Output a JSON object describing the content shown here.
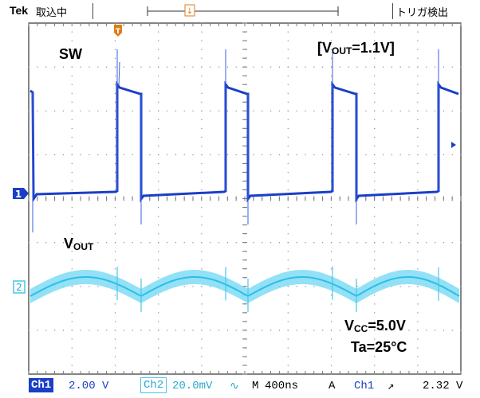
{
  "header": {
    "brand": "Tek",
    "acquisition_status": "取込中",
    "trigger_status": "トリガ検出"
  },
  "annotations": {
    "sw": "SW",
    "vout_setting": "[VOUT=1.1V]",
    "vout": "VOUT",
    "vcc": "VCC=5.0V",
    "ta": "Ta=25°C"
  },
  "markers": {
    "ch1": "1",
    "ch2": "2",
    "trigger_marker": "T"
  },
  "footer": {
    "ch1_label": "Ch1",
    "ch1_scale": "2.00 V",
    "ch2_label": "Ch2",
    "ch2_scale": "20.0mV",
    "ch2_coupling": "∿",
    "timebase_label": "M",
    "timebase": "400ns",
    "trigger_mode": "A",
    "trigger_source": "Ch1",
    "trigger_slope": "↗",
    "trigger_level": "2.32 V"
  },
  "colors": {
    "ch1": "#1a3fc6",
    "ch2": "#45c7ea",
    "grid": "#7a7a7a",
    "trigger": "#e07b1a"
  }
}
